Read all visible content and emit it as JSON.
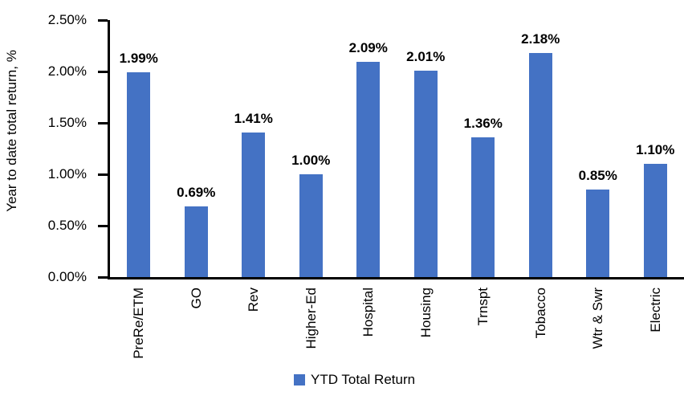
{
  "chart_data": {
    "type": "bar",
    "ylabel": "Year to date total return, %",
    "xlabel": "",
    "categories": [
      "PreRe/ETM",
      "GO",
      "Rev",
      "Higher-Ed",
      "Hospital",
      "Housing",
      "Trnspt",
      "Tobacco",
      "Wtr & Swr",
      "Electric"
    ],
    "values": [
      1.99,
      0.69,
      1.41,
      1.0,
      2.09,
      2.01,
      1.36,
      2.18,
      0.85,
      1.1
    ],
    "value_labels": [
      "1.99%",
      "0.69%",
      "1.41%",
      "1.00%",
      "2.09%",
      "2.01%",
      "1.36%",
      "2.18%",
      "0.85%",
      "1.10%"
    ],
    "ylim": [
      0,
      2.5
    ],
    "ytick_step": 0.5,
    "ytick_labels": [
      "0.00%",
      "0.50%",
      "1.00%",
      "1.50%",
      "2.00%",
      "2.50%"
    ],
    "grid": false,
    "bar_color": "#4472C4",
    "axis_color": "#000000",
    "legend_position": "bottom",
    "legend": [
      {
        "label": "YTD Total Return",
        "color": "#4472C4"
      }
    ]
  }
}
